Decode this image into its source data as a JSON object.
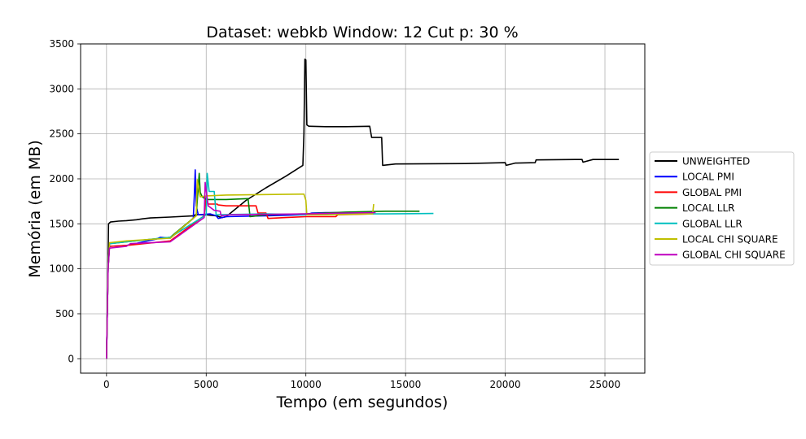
{
  "chart_data": {
    "type": "line",
    "title": "Dataset: webkb Window: 12 Cut p: 30 %",
    "xlabel": "Tempo (em segundos)",
    "ylabel": "Memória (em MB)",
    "xlim": [
      -1300,
      27000
    ],
    "ylim": [
      -160,
      3500
    ],
    "xticks": [
      0,
      5000,
      10000,
      15000,
      20000,
      25000
    ],
    "xtick_labels": [
      "0",
      "5000",
      "10000",
      "15000",
      "20000",
      "25000"
    ],
    "yticks": [
      0,
      500,
      1000,
      1500,
      2000,
      2500,
      3000,
      3500
    ],
    "ytick_labels": [
      "0",
      "500",
      "1000",
      "1500",
      "2000",
      "2500",
      "3000",
      "3500"
    ],
    "grid": true,
    "legend_position": "right",
    "series": [
      {
        "name": "UNWEIGHTED",
        "color": "#000000",
        "points": [
          [
            0,
            0
          ],
          [
            60,
            800
          ],
          [
            100,
            1500
          ],
          [
            200,
            1520
          ],
          [
            600,
            1530
          ],
          [
            1000,
            1535
          ],
          [
            1500,
            1545
          ],
          [
            1800,
            1555
          ],
          [
            2200,
            1565
          ],
          [
            3200,
            1575
          ],
          [
            4400,
            1590
          ],
          [
            4450,
            1600
          ],
          [
            5000,
            1600
          ],
          [
            5500,
            1590
          ],
          [
            5800,
            1570
          ],
          [
            6000,
            1580
          ],
          [
            7000,
            1760
          ],
          [
            8000,
            1900
          ],
          [
            9000,
            2030
          ],
          [
            9850,
            2150
          ],
          [
            9900,
            2500
          ],
          [
            9950,
            3330
          ],
          [
            10000,
            3320
          ],
          [
            10050,
            2600
          ],
          [
            10150,
            2585
          ],
          [
            11000,
            2580
          ],
          [
            12000,
            2580
          ],
          [
            13200,
            2585
          ],
          [
            13300,
            2460
          ],
          [
            13800,
            2460
          ],
          [
            13850,
            2150
          ],
          [
            14500,
            2165
          ],
          [
            18000,
            2170
          ],
          [
            20000,
            2180
          ],
          [
            20050,
            2150
          ],
          [
            20500,
            2175
          ],
          [
            21500,
            2180
          ],
          [
            21550,
            2210
          ],
          [
            23500,
            2215
          ],
          [
            23850,
            2215
          ],
          [
            23900,
            2185
          ],
          [
            24400,
            2215
          ],
          [
            25700,
            2215
          ]
        ]
      },
      {
        "name": "LOCAL PMI",
        "color": "#0000ff",
        "points": [
          [
            0,
            0
          ],
          [
            80,
            1000
          ],
          [
            150,
            1250
          ],
          [
            1000,
            1260
          ],
          [
            2500,
            1330
          ],
          [
            2700,
            1350
          ],
          [
            3200,
            1340
          ],
          [
            4350,
            1560
          ],
          [
            4400,
            1800
          ],
          [
            4450,
            2100
          ],
          [
            4500,
            1700
          ],
          [
            4600,
            1600
          ],
          [
            5200,
            1610
          ],
          [
            5500,
            1590
          ],
          [
            5600,
            1560
          ],
          [
            6000,
            1580
          ],
          [
            8000,
            1590
          ],
          [
            10000,
            1600
          ],
          [
            10300,
            1620
          ],
          [
            11000,
            1625
          ],
          [
            12500,
            1625
          ]
        ]
      },
      {
        "name": "GLOBAL PMI",
        "color": "#ff0000",
        "points": [
          [
            0,
            0
          ],
          [
            80,
            1000
          ],
          [
            150,
            1250
          ],
          [
            1000,
            1260
          ],
          [
            3200,
            1310
          ],
          [
            4900,
            1590
          ],
          [
            5000,
            1800
          ],
          [
            5100,
            1720
          ],
          [
            5300,
            1720
          ],
          [
            5550,
            1720
          ],
          [
            5600,
            1710
          ],
          [
            6000,
            1700
          ],
          [
            7500,
            1700
          ],
          [
            7600,
            1620
          ],
          [
            8000,
            1620
          ],
          [
            8100,
            1560
          ],
          [
            9000,
            1570
          ],
          [
            10000,
            1580
          ],
          [
            11500,
            1580
          ],
          [
            11600,
            1600
          ],
          [
            13400,
            1610
          ]
        ]
      },
      {
        "name": "LOCAL LLR",
        "color": "#008000",
        "points": [
          [
            0,
            0
          ],
          [
            80,
            1000
          ],
          [
            150,
            1280
          ],
          [
            1000,
            1300
          ],
          [
            3200,
            1350
          ],
          [
            4500,
            1590
          ],
          [
            4650,
            2060
          ],
          [
            4700,
            1850
          ],
          [
            4800,
            1800
          ],
          [
            5000,
            1770
          ],
          [
            6000,
            1770
          ],
          [
            7100,
            1780
          ],
          [
            7200,
            1580
          ],
          [
            8000,
            1600
          ],
          [
            10000,
            1610
          ],
          [
            12000,
            1630
          ],
          [
            14000,
            1640
          ],
          [
            15700,
            1640
          ]
        ]
      },
      {
        "name": "GLOBAL LLR",
        "color": "#00bfbf",
        "points": [
          [
            0,
            0
          ],
          [
            80,
            1000
          ],
          [
            150,
            1280
          ],
          [
            1000,
            1300
          ],
          [
            3200,
            1350
          ],
          [
            5000,
            1600
          ],
          [
            5050,
            2060
          ],
          [
            5150,
            1860
          ],
          [
            5400,
            1860
          ],
          [
            5500,
            1600
          ],
          [
            8000,
            1610
          ],
          [
            10000,
            1600
          ],
          [
            12000,
            1610
          ],
          [
            14000,
            1610
          ],
          [
            16400,
            1615
          ]
        ]
      },
      {
        "name": "LOCAL CHI SQUARE",
        "color": "#bfbf00",
        "points": [
          [
            0,
            0
          ],
          [
            80,
            1000
          ],
          [
            150,
            1290
          ],
          [
            1000,
            1310
          ],
          [
            3200,
            1340
          ],
          [
            4500,
            1590
          ],
          [
            4550,
            1990
          ],
          [
            4700,
            1800
          ],
          [
            5000,
            1810
          ],
          [
            6000,
            1820
          ],
          [
            8000,
            1825
          ],
          [
            9700,
            1830
          ],
          [
            9900,
            1830
          ],
          [
            10000,
            1760
          ],
          [
            10050,
            1600
          ],
          [
            11000,
            1600
          ],
          [
            12000,
            1605
          ],
          [
            13350,
            1610
          ],
          [
            13400,
            1720
          ]
        ]
      },
      {
        "name": "GLOBAL CHI SQUARE",
        "color": "#bf00bf",
        "points": [
          [
            0,
            0
          ],
          [
            80,
            1000
          ],
          [
            150,
            1230
          ],
          [
            1000,
            1250
          ],
          [
            1200,
            1280
          ],
          [
            3200,
            1300
          ],
          [
            4900,
            1570
          ],
          [
            4950,
            1960
          ],
          [
            5100,
            1700
          ],
          [
            5400,
            1650
          ],
          [
            5700,
            1640
          ],
          [
            5750,
            1590
          ],
          [
            6200,
            1600
          ],
          [
            8000,
            1605
          ],
          [
            10000,
            1610
          ],
          [
            12000,
            1620
          ],
          [
            13500,
            1625
          ]
        ]
      }
    ]
  }
}
